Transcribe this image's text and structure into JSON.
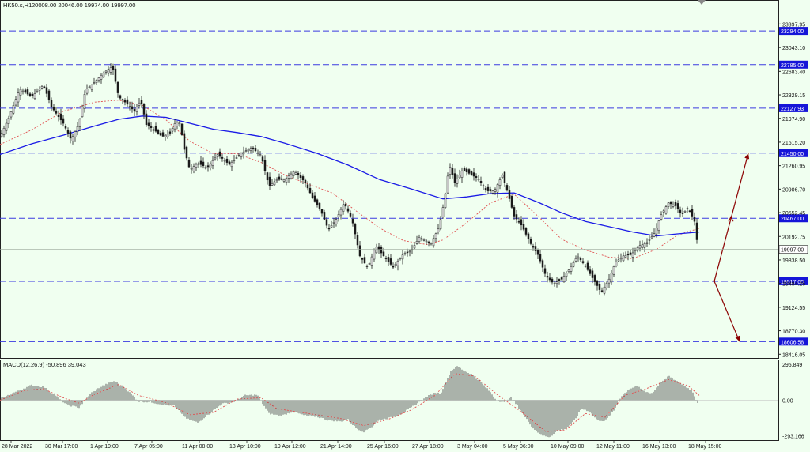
{
  "header": {
    "symbol": "HK50.s,H1",
    "ohlc": "20008.00 20046.00 19974.00 19997.00",
    "macd_label": "MACD(12,26,9) -50.896 39.043"
  },
  "colors": {
    "background": "#f0fff0",
    "ma_slow": "#1a1ae6",
    "ma_fast": "#e05050",
    "level_line": "#3a3ae0",
    "level_box": "#1515d8",
    "arrow": "#8b0000",
    "candle": "#1a1a1a"
  },
  "chart_data": [
    {
      "type": "candlestick",
      "title": "HK50.s,H1",
      "y_axis_ticks": [
        "23397.95",
        "23043.10",
        "22683.40",
        "22329.15",
        "21974.90",
        "21615.20",
        "21260.95",
        "20906.70",
        "20552.45",
        "20192.75",
        "19838.50",
        "19484.25",
        "19124.55",
        "18770.30",
        "18416.05"
      ],
      "ylim": [
        18360,
        23760
      ],
      "x_axis_ticks": [
        "28 Mar 2022",
        "30 Mar 17:00",
        "1 Apr 19:00",
        "7 Apr 05:00",
        "11 Apr 08:00",
        "13 Apr 10:00",
        "19 Apr 12:00",
        "21 Apr 14:00",
        "25 Apr 16:00",
        "27 Apr 18:00",
        "3 May 04:00",
        "5 May 06:00",
        "10 May 09:00",
        "12 May 11:00",
        "16 May 13:00",
        "18 May 15:00"
      ],
      "horizontal_levels": [
        23294.0,
        22785.0,
        22127.93,
        21450.0,
        20467.0,
        19517.0,
        18606.58
      ],
      "current_price": 19997.0,
      "price_path": [
        [
          0,
          21700
        ],
        [
          10,
          21950
        ],
        [
          25,
          22420
        ],
        [
          40,
          22300
        ],
        [
          55,
          22480
        ],
        [
          65,
          22150
        ],
        [
          80,
          21900
        ],
        [
          90,
          21650
        ],
        [
          100,
          21900
        ],
        [
          108,
          22400
        ],
        [
          118,
          22500
        ],
        [
          130,
          22650
        ],
        [
          142,
          22760
        ],
        [
          150,
          22300
        ],
        [
          160,
          22200
        ],
        [
          170,
          22080
        ],
        [
          178,
          22250
        ],
        [
          185,
          21880
        ],
        [
          195,
          21800
        ],
        [
          205,
          21700
        ],
        [
          215,
          21750
        ],
        [
          222,
          21920
        ],
        [
          228,
          21900
        ],
        [
          232,
          21550
        ],
        [
          240,
          21200
        ],
        [
          250,
          21300
        ],
        [
          262,
          21230
        ],
        [
          275,
          21430
        ],
        [
          290,
          21280
        ],
        [
          305,
          21450
        ],
        [
          318,
          21530
        ],
        [
          330,
          21420
        ],
        [
          340,
          20950
        ],
        [
          350,
          21050
        ],
        [
          360,
          21050
        ],
        [
          372,
          21180
        ],
        [
          385,
          21020
        ],
        [
          395,
          20780
        ],
        [
          405,
          20600
        ],
        [
          415,
          20300
        ],
        [
          425,
          20450
        ],
        [
          435,
          20700
        ],
        [
          445,
          20450
        ],
        [
          455,
          19900
        ],
        [
          465,
          19720
        ],
        [
          475,
          20050
        ],
        [
          485,
          19900
        ],
        [
          497,
          19730
        ],
        [
          510,
          19930
        ],
        [
          520,
          19980
        ],
        [
          530,
          20180
        ],
        [
          545,
          20090
        ],
        [
          555,
          20330
        ],
        [
          562,
          20750
        ],
        [
          568,
          21280
        ],
        [
          575,
          21000
        ],
        [
          585,
          21200
        ],
        [
          595,
          21130
        ],
        [
          605,
          21060
        ],
        [
          615,
          20880
        ],
        [
          625,
          20880
        ],
        [
          635,
          21120
        ],
        [
          642,
          20850
        ],
        [
          650,
          20500
        ],
        [
          660,
          20350
        ],
        [
          670,
          20100
        ],
        [
          680,
          19920
        ],
        [
          690,
          19600
        ],
        [
          700,
          19480
        ],
        [
          710,
          19550
        ],
        [
          720,
          19700
        ],
        [
          730,
          19900
        ],
        [
          740,
          19750
        ],
        [
          750,
          19550
        ],
        [
          760,
          19350
        ],
        [
          770,
          19550
        ],
        [
          778,
          19800
        ],
        [
          788,
          19900
        ],
        [
          798,
          19920
        ],
        [
          808,
          20050
        ],
        [
          818,
          20100
        ],
        [
          828,
          20250
        ],
        [
          835,
          20500
        ],
        [
          845,
          20700
        ],
        [
          855,
          20650
        ],
        [
          862,
          20520
        ],
        [
          870,
          20630
        ],
        [
          878,
          20420
        ],
        [
          882,
          20050
        ]
      ],
      "ma_fast_path": [
        [
          0,
          21580
        ],
        [
          40,
          21800
        ],
        [
          80,
          22080
        ],
        [
          120,
          22220
        ],
        [
          150,
          22250
        ],
        [
          180,
          22170
        ],
        [
          210,
          21950
        ],
        [
          240,
          21630
        ],
        [
          270,
          21440
        ],
        [
          300,
          21440
        ],
        [
          330,
          21310
        ],
        [
          360,
          21120
        ],
        [
          390,
          20980
        ],
        [
          420,
          20850
        ],
        [
          450,
          20580
        ],
        [
          480,
          20320
        ],
        [
          510,
          20130
        ],
        [
          540,
          20070
        ],
        [
          560,
          20140
        ],
        [
          590,
          20400
        ],
        [
          620,
          20700
        ],
        [
          650,
          20830
        ],
        [
          680,
          20500
        ],
        [
          710,
          20150
        ],
        [
          740,
          19990
        ],
        [
          770,
          19880
        ],
        [
          800,
          19860
        ],
        [
          830,
          20000
        ],
        [
          855,
          20200
        ],
        [
          870,
          20270
        ],
        [
          884,
          20310
        ]
      ],
      "ma_slow_path": [
        [
          0,
          21430
        ],
        [
          40,
          21590
        ],
        [
          80,
          21720
        ],
        [
          120,
          21860
        ],
        [
          150,
          21960
        ],
        [
          180,
          22010
        ],
        [
          210,
          21990
        ],
        [
          240,
          21900
        ],
        [
          270,
          21810
        ],
        [
          300,
          21760
        ],
        [
          330,
          21700
        ],
        [
          360,
          21600
        ],
        [
          400,
          21450
        ],
        [
          440,
          21270
        ],
        [
          480,
          21050
        ],
        [
          520,
          20910
        ],
        [
          560,
          20760
        ],
        [
          590,
          20790
        ],
        [
          620,
          20840
        ],
        [
          650,
          20850
        ],
        [
          680,
          20710
        ],
        [
          710,
          20550
        ],
        [
          740,
          20420
        ],
        [
          770,
          20340
        ],
        [
          800,
          20260
        ],
        [
          830,
          20200
        ],
        [
          855,
          20230
        ],
        [
          884,
          20260
        ]
      ],
      "projection_arrows": [
        [
          [
            903,
            19517
          ],
          [
            946,
            21450
          ]
        ],
        [
          [
            903,
            19517
          ],
          [
            935,
            18606.58
          ]
        ]
      ],
      "arrow_midpoint_tick": [
        924,
        20467
      ]
    },
    {
      "type": "bar",
      "title": "MACD(12,26,9) -50.896 39.043",
      "y_axis_ticks": [
        "295.849",
        "0.00",
        "-293.166"
      ],
      "ylim": [
        -330,
        330
      ],
      "histogram_path": [
        [
          0,
          10
        ],
        [
          20,
          70
        ],
        [
          40,
          125
        ],
        [
          55,
          110
        ],
        [
          70,
          40
        ],
        [
          85,
          -40
        ],
        [
          100,
          -60
        ],
        [
          115,
          60
        ],
        [
          130,
          120
        ],
        [
          145,
          160
        ],
        [
          160,
          90
        ],
        [
          175,
          -10
        ],
        [
          190,
          -15
        ],
        [
          205,
          -35
        ],
        [
          220,
          -45
        ],
        [
          235,
          -150
        ],
        [
          250,
          -185
        ],
        [
          265,
          -110
        ],
        [
          280,
          -30
        ],
        [
          295,
          -15
        ],
        [
          310,
          40
        ],
        [
          325,
          45
        ],
        [
          340,
          -110
        ],
        [
          355,
          -130
        ],
        [
          370,
          -95
        ],
        [
          385,
          -125
        ],
        [
          400,
          -135
        ],
        [
          415,
          -165
        ],
        [
          430,
          -175
        ],
        [
          440,
          -160
        ],
        [
          450,
          -230
        ],
        [
          460,
          -260
        ],
        [
          470,
          -220
        ],
        [
          480,
          -160
        ],
        [
          490,
          -150
        ],
        [
          500,
          -135
        ],
        [
          510,
          -100
        ],
        [
          520,
          -60
        ],
        [
          530,
          -15
        ],
        [
          540,
          30
        ],
        [
          550,
          65
        ],
        [
          557,
          55
        ],
        [
          563,
          140
        ],
        [
          570,
          245
        ],
        [
          578,
          280
        ],
        [
          588,
          240
        ],
        [
          598,
          210
        ],
        [
          608,
          150
        ],
        [
          618,
          80
        ],
        [
          628,
          0
        ],
        [
          638,
          -20
        ],
        [
          645,
          30
        ],
        [
          655,
          -55
        ],
        [
          665,
          -150
        ],
        [
          675,
          -240
        ],
        [
          685,
          -290
        ],
        [
          695,
          -305
        ],
        [
          705,
          -250
        ],
        [
          715,
          -235
        ],
        [
          725,
          -180
        ],
        [
          735,
          -70
        ],
        [
          745,
          -90
        ],
        [
          755,
          -165
        ],
        [
          765,
          -170
        ],
        [
          775,
          -100
        ],
        [
          785,
          30
        ],
        [
          795,
          90
        ],
        [
          805,
          120
        ],
        [
          815,
          70
        ],
        [
          825,
          60
        ],
        [
          835,
          150
        ],
        [
          845,
          200
        ],
        [
          855,
          160
        ],
        [
          865,
          120
        ],
        [
          875,
          80
        ],
        [
          884,
          -50
        ]
      ],
      "signal_path": [
        [
          0,
          0
        ],
        [
          30,
          80
        ],
        [
          55,
          95
        ],
        [
          80,
          20
        ],
        [
          100,
          -25
        ],
        [
          120,
          50
        ],
        [
          150,
          130
        ],
        [
          175,
          40
        ],
        [
          210,
          -20
        ],
        [
          240,
          -120
        ],
        [
          270,
          -100
        ],
        [
          300,
          10
        ],
        [
          330,
          20
        ],
        [
          350,
          -70
        ],
        [
          390,
          -110
        ],
        [
          430,
          -150
        ],
        [
          460,
          -210
        ],
        [
          490,
          -160
        ],
        [
          520,
          -80
        ],
        [
          550,
          40
        ],
        [
          575,
          220
        ],
        [
          600,
          200
        ],
        [
          630,
          40
        ],
        [
          660,
          -100
        ],
        [
          690,
          -260
        ],
        [
          715,
          -245
        ],
        [
          740,
          -110
        ],
        [
          765,
          -140
        ],
        [
          790,
          40
        ],
        [
          815,
          90
        ],
        [
          845,
          170
        ],
        [
          870,
          120
        ],
        [
          884,
          40
        ]
      ]
    }
  ]
}
